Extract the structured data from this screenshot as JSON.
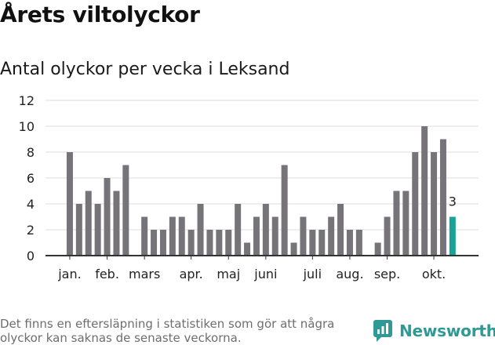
{
  "header": {
    "title": "Årets viltolyckor",
    "subtitle": "Antal olyckor per vecka i Leksand"
  },
  "chart_data": {
    "type": "bar",
    "title": "Antal olyckor per vecka i Leksand",
    "xlabel": "",
    "ylabel": "",
    "ylim": [
      0,
      12
    ],
    "y_ticks": [
      0,
      2,
      4,
      6,
      8,
      10,
      12
    ],
    "grid": true,
    "x_start_week": 1,
    "values": [
      8,
      4,
      5,
      4,
      6,
      5,
      7,
      0,
      3,
      2,
      2,
      3,
      3,
      2,
      4,
      2,
      2,
      2,
      4,
      1,
      3,
      4,
      3,
      7,
      1,
      3,
      2,
      2,
      3,
      4,
      2,
      2,
      0,
      1,
      3,
      5,
      5,
      8,
      10,
      8,
      9,
      3
    ],
    "month_labels": [
      {
        "label": "jan.",
        "week": 1
      },
      {
        "label": "feb.",
        "week": 5
      },
      {
        "label": "mars",
        "week": 9
      },
      {
        "label": "apr.",
        "week": 14
      },
      {
        "label": "maj",
        "week": 18
      },
      {
        "label": "juni",
        "week": 22
      },
      {
        "label": "juli",
        "week": 27
      },
      {
        "label": "aug.",
        "week": 31
      },
      {
        "label": "sep.",
        "week": 35
      },
      {
        "label": "okt.",
        "week": 40
      }
    ],
    "highlight_last": true,
    "last_value_label": "3",
    "colors": {
      "bar": "#767479",
      "highlight": "#17a397",
      "grid": "#dddddd",
      "axis": "#333333"
    }
  },
  "footer": {
    "note": "Det finns en eftersläpning i statistiken som gör att några olyckor kan saknas de senaste veckorna.",
    "brand": "Newsworthy",
    "brand_icon": "newsworthy-logo-icon",
    "brand_color": "#2f9a95"
  }
}
